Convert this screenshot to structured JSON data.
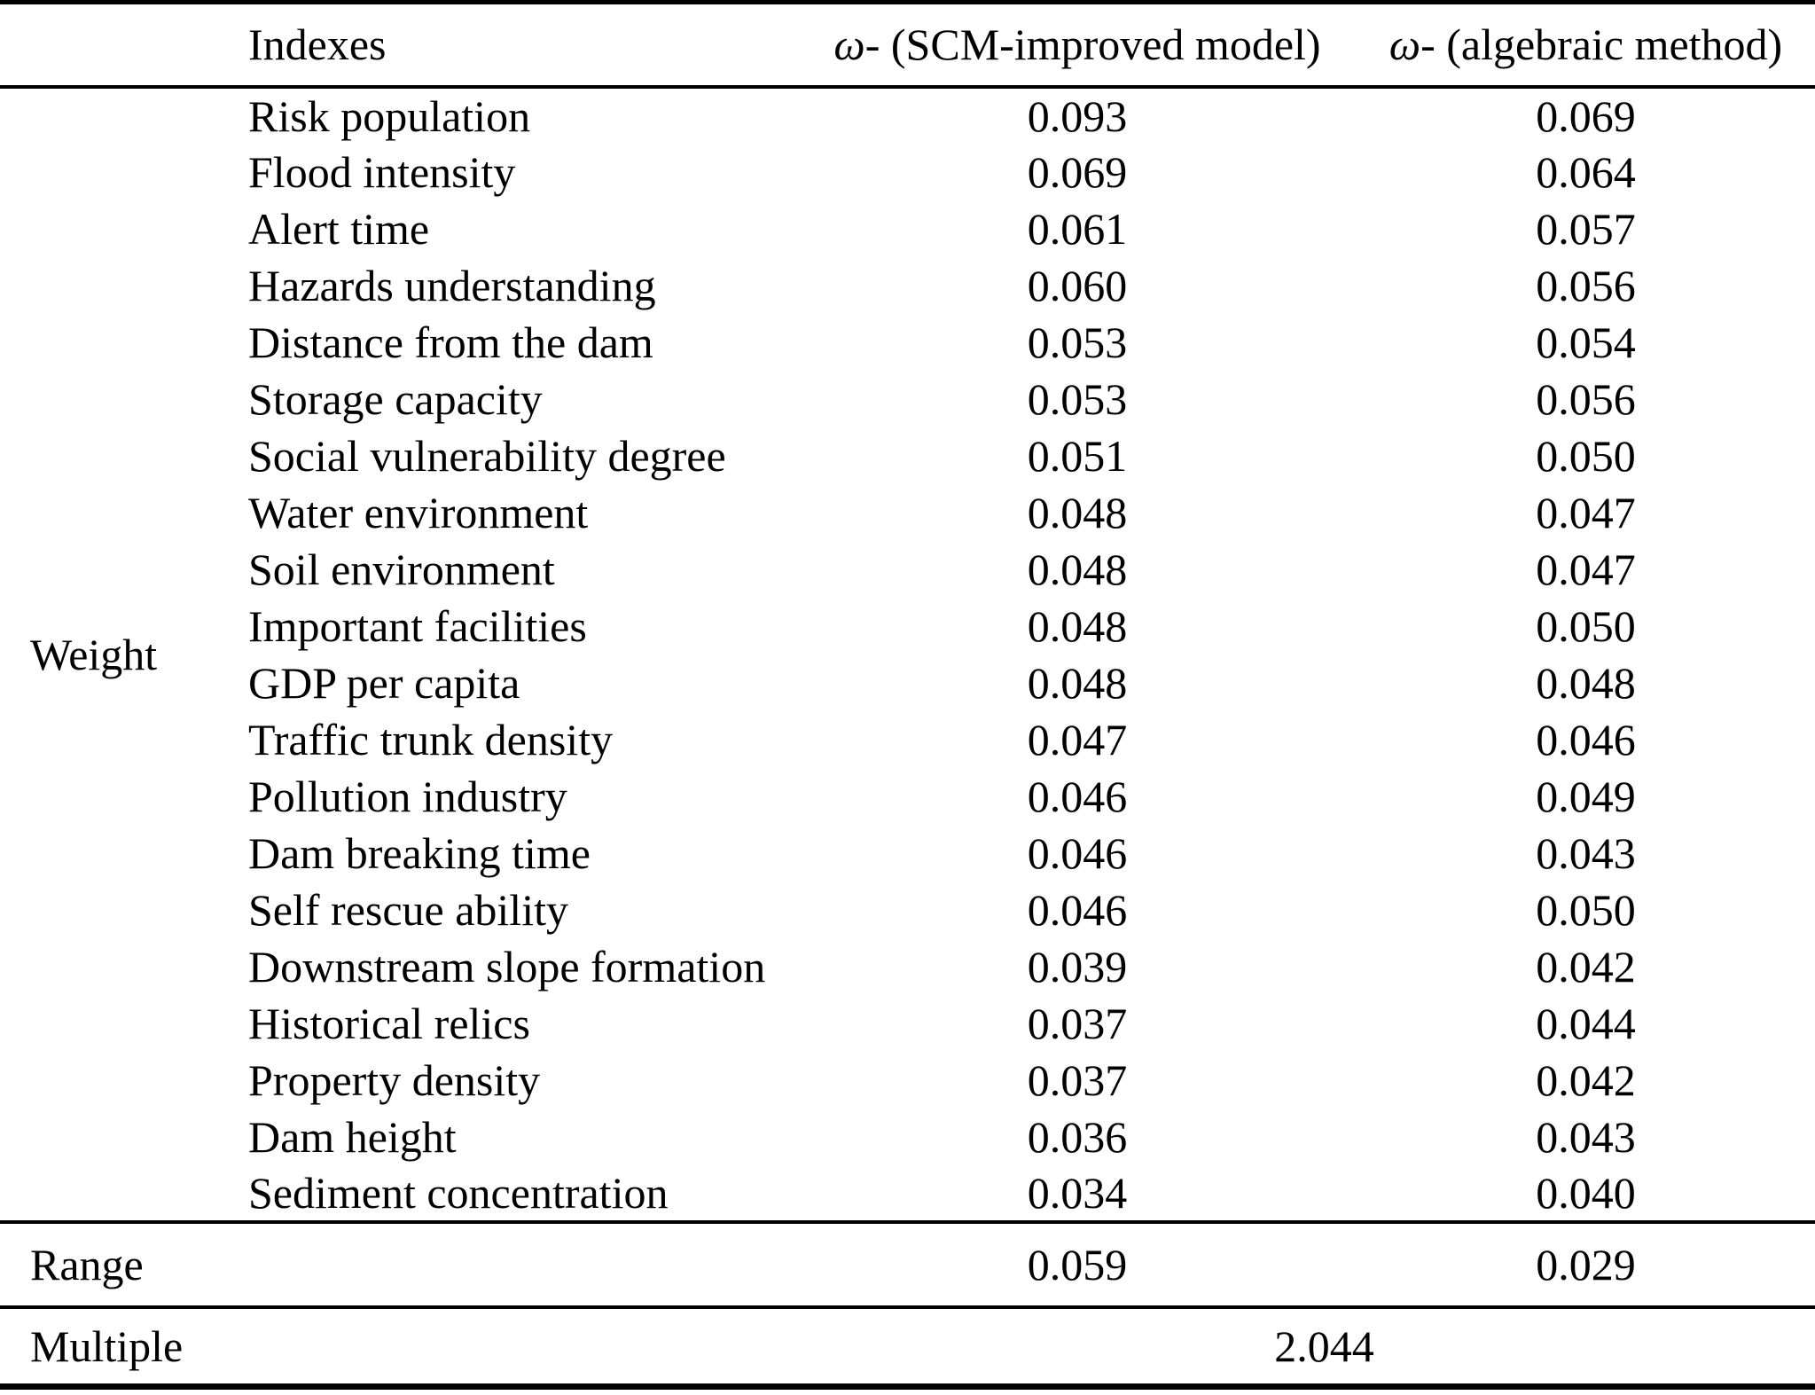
{
  "table": {
    "header": {
      "indexes": "Indexes",
      "col_scm": {
        "omega": "ω",
        "rest": "- (SCM-improved model)"
      },
      "col_algebraic": {
        "omega": "ω",
        "rest": "- (algebraic method)"
      }
    },
    "row_group_label": "Weight",
    "rows": [
      {
        "index": "Risk population",
        "scm": "0.093",
        "algebraic": "0.069"
      },
      {
        "index": "Flood intensity",
        "scm": "0.069",
        "algebraic": "0.064"
      },
      {
        "index": "Alert time",
        "scm": "0.061",
        "algebraic": "0.057"
      },
      {
        "index": "Hazards understanding",
        "scm": "0.060",
        "algebraic": "0.056"
      },
      {
        "index": "Distance from the dam",
        "scm": "0.053",
        "algebraic": "0.054"
      },
      {
        "index": "Storage capacity",
        "scm": "0.053",
        "algebraic": "0.056"
      },
      {
        "index": "Social vulnerability degree",
        "scm": "0.051",
        "algebraic": "0.050"
      },
      {
        "index": "Water environment",
        "scm": "0.048",
        "algebraic": "0.047"
      },
      {
        "index": "Soil environment",
        "scm": "0.048",
        "algebraic": "0.047"
      },
      {
        "index": "Important facilities",
        "scm": "0.048",
        "algebraic": "0.050"
      },
      {
        "index": "GDP per capita",
        "scm": "0.048",
        "algebraic": "0.048"
      },
      {
        "index": "Traffic trunk density",
        "scm": "0.047",
        "algebraic": "0.046"
      },
      {
        "index": "Pollution industry",
        "scm": "0.046",
        "algebraic": "0.049"
      },
      {
        "index": "Dam breaking time",
        "scm": "0.046",
        "algebraic": "0.043"
      },
      {
        "index": "Self rescue ability",
        "scm": "0.046",
        "algebraic": "0.050"
      },
      {
        "index": "Downstream slope formation",
        "scm": "0.039",
        "algebraic": "0.042"
      },
      {
        "index": "Historical relics",
        "scm": "0.037",
        "algebraic": "0.044"
      },
      {
        "index": "Property density",
        "scm": "0.037",
        "algebraic": "0.042"
      },
      {
        "index": "Dam height",
        "scm": "0.036",
        "algebraic": "0.043"
      },
      {
        "index": "Sediment concentration",
        "scm": "0.034",
        "algebraic": "0.040"
      }
    ],
    "range": {
      "label": "Range",
      "scm": "0.059",
      "algebraic": "0.029"
    },
    "multiple": {
      "label": "Multiple",
      "value": "2.044"
    }
  },
  "colors": {
    "text": "#000000",
    "background": "#ffffff",
    "rule": "#000000"
  }
}
